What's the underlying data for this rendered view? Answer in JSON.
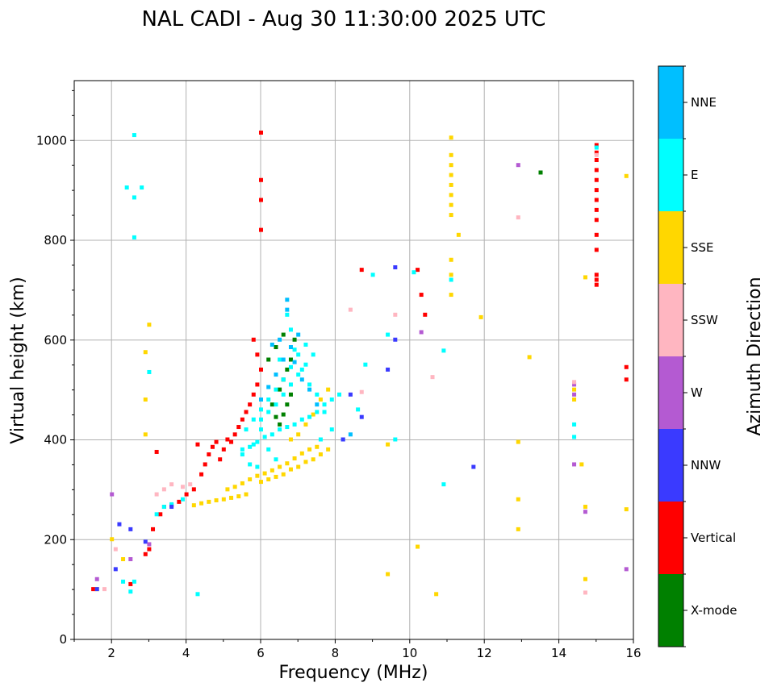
{
  "chart_data": {
    "type": "scatter",
    "title": "NAL CADI - Aug 30 11:30:00 2025 UTC",
    "xlabel": "Frequency (MHz)",
    "ylabel": "Virtual height (km)",
    "xlim": [
      1,
      16
    ],
    "ylim": [
      0,
      1120
    ],
    "xticks": [
      "2",
      "4",
      "6",
      "8",
      "10",
      "12",
      "14",
      "16"
    ],
    "yticks": [
      "0",
      "200",
      "400",
      "600",
      "800",
      "1000"
    ],
    "grid": true,
    "colorbar": {
      "label": "Azimuth Direction",
      "categories": [
        {
          "name": "X-mode",
          "color": "#008000"
        },
        {
          "name": "Vertical",
          "color": "#ff0000"
        },
        {
          "name": "NNW",
          "color": "#3a3aff"
        },
        {
          "name": "W",
          "color": "#b45ad2"
        },
        {
          "name": "SSW",
          "color": "#ffb6c1"
        },
        {
          "name": "SSE",
          "color": "#ffd700"
        },
        {
          "name": "E",
          "color": "#00ffff"
        },
        {
          "name": "NNE",
          "color": "#00bfff"
        }
      ]
    },
    "series": [
      {
        "name": "Vertical",
        "points": [
          [
            1.5,
            100
          ],
          [
            2.5,
            110
          ],
          [
            2.9,
            170
          ],
          [
            3.0,
            180
          ],
          [
            3.1,
            220
          ],
          [
            3.3,
            250
          ],
          [
            3.4,
            265
          ],
          [
            3.6,
            268
          ],
          [
            3.8,
            275
          ],
          [
            4.0,
            290
          ],
          [
            4.2,
            300
          ],
          [
            4.4,
            330
          ],
          [
            4.5,
            350
          ],
          [
            4.6,
            370
          ],
          [
            4.7,
            385
          ],
          [
            4.8,
            395
          ],
          [
            4.9,
            360
          ],
          [
            5.0,
            380
          ],
          [
            5.2,
            395
          ],
          [
            5.3,
            410
          ],
          [
            5.4,
            425
          ],
          [
            5.5,
            440
          ],
          [
            5.6,
            455
          ],
          [
            5.7,
            470
          ],
          [
            5.8,
            490
          ],
          [
            5.9,
            510
          ],
          [
            6.0,
            540
          ],
          [
            5.9,
            570
          ],
          [
            5.8,
            600
          ],
          [
            6.0,
            820
          ],
          [
            6.0,
            880
          ],
          [
            6.0,
            920
          ],
          [
            6.0,
            1015
          ],
          [
            3.2,
            375
          ],
          [
            4.3,
            390
          ],
          [
            5.1,
            400
          ],
          [
            10.3,
            690
          ],
          [
            10.4,
            650
          ],
          [
            10.2,
            740
          ],
          [
            8.7,
            740
          ],
          [
            15.0,
            710
          ],
          [
            15.0,
            720
          ],
          [
            15.0,
            730
          ],
          [
            15.0,
            780
          ],
          [
            15.0,
            810
          ],
          [
            15.0,
            840
          ],
          [
            15.0,
            860
          ],
          [
            15.0,
            880
          ],
          [
            15.0,
            900
          ],
          [
            15.0,
            920
          ],
          [
            15.0,
            940
          ],
          [
            15.0,
            960
          ],
          [
            15.0,
            975
          ],
          [
            15.0,
            990
          ],
          [
            15.8,
            520
          ],
          [
            15.8,
            545
          ]
        ]
      },
      {
        "name": "X-mode",
        "points": [
          [
            6.5,
            430
          ],
          [
            6.6,
            450
          ],
          [
            6.7,
            470
          ],
          [
            6.8,
            490
          ],
          [
            6.5,
            500
          ],
          [
            6.6,
            520
          ],
          [
            6.7,
            540
          ],
          [
            6.8,
            560
          ],
          [
            6.9,
            600
          ],
          [
            6.6,
            610
          ],
          [
            6.4,
            585
          ],
          [
            6.2,
            560
          ],
          [
            6.3,
            470
          ],
          [
            6.4,
            445
          ],
          [
            13.5,
            935
          ]
        ]
      },
      {
        "name": "SSE",
        "points": [
          [
            2.9,
            410
          ],
          [
            2.9,
            480
          ],
          [
            2.9,
            575
          ],
          [
            3.0,
            630
          ],
          [
            1.6,
            100
          ],
          [
            2.0,
            200
          ],
          [
            2.3,
            160
          ],
          [
            4.2,
            268
          ],
          [
            4.4,
            272
          ],
          [
            4.6,
            275
          ],
          [
            4.8,
            278
          ],
          [
            5.0,
            280
          ],
          [
            5.2,
            283
          ],
          [
            5.4,
            286
          ],
          [
            5.6,
            290
          ],
          [
            5.1,
            300
          ],
          [
            5.3,
            305
          ],
          [
            5.5,
            312
          ],
          [
            5.7,
            320
          ],
          [
            5.9,
            327
          ],
          [
            6.1,
            332
          ],
          [
            6.3,
            338
          ],
          [
            6.5,
            345
          ],
          [
            6.7,
            352
          ],
          [
            6.9,
            362
          ],
          [
            7.1,
            372
          ],
          [
            7.3,
            380
          ],
          [
            7.5,
            385
          ],
          [
            6.0,
            315
          ],
          [
            6.2,
            320
          ],
          [
            6.4,
            325
          ],
          [
            6.6,
            330
          ],
          [
            6.8,
            340
          ],
          [
            7.0,
            345
          ],
          [
            7.2,
            355
          ],
          [
            7.4,
            360
          ],
          [
            7.6,
            370
          ],
          [
            7.8,
            380
          ],
          [
            6.8,
            400
          ],
          [
            7.0,
            410
          ],
          [
            7.2,
            430
          ],
          [
            7.4,
            450
          ],
          [
            7.6,
            480
          ],
          [
            7.8,
            500
          ],
          [
            9.4,
            390
          ],
          [
            9.4,
            130
          ],
          [
            10.2,
            185
          ],
          [
            10.7,
            90
          ],
          [
            11.1,
            690
          ],
          [
            11.1,
            730
          ],
          [
            11.1,
            760
          ],
          [
            11.1,
            850
          ],
          [
            11.1,
            870
          ],
          [
            11.1,
            890
          ],
          [
            11.1,
            910
          ],
          [
            11.1,
            930
          ],
          [
            11.1,
            950
          ],
          [
            11.1,
            970
          ],
          [
            11.1,
            1005
          ],
          [
            11.3,
            810
          ],
          [
            11.9,
            645
          ],
          [
            12.9,
            395
          ],
          [
            12.9,
            280
          ],
          [
            12.9,
            220
          ],
          [
            13.2,
            565
          ],
          [
            14.4,
            500
          ],
          [
            14.4,
            480
          ],
          [
            14.6,
            350
          ],
          [
            14.7,
            265
          ],
          [
            14.7,
            120
          ],
          [
            15.8,
            928
          ],
          [
            15.8,
            260
          ],
          [
            14.7,
            725
          ]
        ]
      },
      {
        "name": "E",
        "points": [
          [
            2.3,
            115
          ],
          [
            2.6,
            115
          ],
          [
            2.5,
            95
          ],
          [
            3.2,
            250
          ],
          [
            3.4,
            265
          ],
          [
            3.6,
            270
          ],
          [
            3.9,
            280
          ],
          [
            5.5,
            380
          ],
          [
            5.7,
            385
          ],
          [
            5.9,
            395
          ],
          [
            6.1,
            405
          ],
          [
            6.3,
            410
          ],
          [
            6.5,
            420
          ],
          [
            6.7,
            425
          ],
          [
            6.9,
            430
          ],
          [
            7.1,
            440
          ],
          [
            7.3,
            445
          ],
          [
            7.5,
            455
          ],
          [
            7.7,
            470
          ],
          [
            7.9,
            480
          ],
          [
            8.1,
            490
          ],
          [
            6.0,
            440
          ],
          [
            6.2,
            455
          ],
          [
            6.4,
            470
          ],
          [
            6.6,
            490
          ],
          [
            6.8,
            510
          ],
          [
            7.0,
            530
          ],
          [
            7.2,
            550
          ],
          [
            7.4,
            570
          ],
          [
            5.6,
            420
          ],
          [
            5.8,
            440
          ],
          [
            6.0,
            460
          ],
          [
            6.2,
            480
          ],
          [
            6.4,
            500
          ],
          [
            6.6,
            520
          ],
          [
            6.8,
            545
          ],
          [
            7.0,
            570
          ],
          [
            7.2,
            590
          ],
          [
            6.5,
            560
          ],
          [
            6.8,
            620
          ],
          [
            6.7,
            650
          ],
          [
            6.9,
            580
          ],
          [
            7.1,
            540
          ],
          [
            7.3,
            510
          ],
          [
            7.5,
            490
          ],
          [
            7.7,
            455
          ],
          [
            7.9,
            420
          ],
          [
            7.6,
            400
          ],
          [
            6.0,
            420
          ],
          [
            6.2,
            380
          ],
          [
            6.4,
            360
          ],
          [
            5.8,
            390
          ],
          [
            5.5,
            370
          ],
          [
            5.7,
            350
          ],
          [
            5.9,
            345
          ],
          [
            4.3,
            90
          ],
          [
            2.8,
            905
          ],
          [
            2.4,
            905
          ],
          [
            2.6,
            885
          ],
          [
            2.6,
            805
          ],
          [
            2.6,
            1010
          ],
          [
            3.0,
            535
          ],
          [
            8.6,
            460
          ],
          [
            8.8,
            550
          ],
          [
            9.0,
            730
          ],
          [
            9.4,
            610
          ],
          [
            10.1,
            735
          ],
          [
            10.9,
            310
          ],
          [
            10.9,
            578
          ],
          [
            11.1,
            720
          ],
          [
            14.4,
            430
          ],
          [
            14.4,
            405
          ],
          [
            15.0,
            985
          ],
          [
            9.6,
            400
          ]
        ]
      },
      {
        "name": "NNE",
        "points": [
          [
            6.0,
            480
          ],
          [
            6.2,
            505
          ],
          [
            6.4,
            530
          ],
          [
            6.6,
            560
          ],
          [
            6.8,
            585
          ],
          [
            7.0,
            610
          ],
          [
            6.7,
            680
          ],
          [
            6.7,
            660
          ],
          [
            6.5,
            600
          ],
          [
            6.3,
            590
          ],
          [
            6.9,
            555
          ],
          [
            7.1,
            520
          ],
          [
            7.3,
            500
          ],
          [
            7.5,
            470
          ],
          [
            8.2,
            400
          ],
          [
            8.4,
            410
          ]
        ]
      },
      {
        "name": "NNW",
        "points": [
          [
            1.6,
            100
          ],
          [
            2.1,
            140
          ],
          [
            2.2,
            230
          ],
          [
            2.5,
            220
          ],
          [
            2.9,
            195
          ],
          [
            3.6,
            265
          ],
          [
            8.2,
            400
          ],
          [
            8.4,
            490
          ],
          [
            8.7,
            445
          ],
          [
            9.4,
            540
          ],
          [
            11.7,
            345
          ],
          [
            9.6,
            600
          ],
          [
            9.6,
            745
          ]
        ]
      },
      {
        "name": "W",
        "points": [
          [
            1.6,
            120
          ],
          [
            2.0,
            290
          ],
          [
            2.5,
            160
          ],
          [
            3.0,
            190
          ],
          [
            10.3,
            615
          ],
          [
            12.9,
            950
          ],
          [
            14.4,
            350
          ],
          [
            14.7,
            255
          ],
          [
            15.8,
            140
          ],
          [
            14.4,
            510
          ],
          [
            14.4,
            490
          ]
        ]
      },
      {
        "name": "SSW",
        "points": [
          [
            1.8,
            100
          ],
          [
            2.1,
            180
          ],
          [
            3.2,
            290
          ],
          [
            3.4,
            300
          ],
          [
            3.6,
            310
          ],
          [
            3.9,
            305
          ],
          [
            4.1,
            310
          ],
          [
            8.4,
            660
          ],
          [
            8.7,
            495
          ],
          [
            9.6,
            650
          ],
          [
            10.6,
            525
          ],
          [
            12.9,
            845
          ],
          [
            14.4,
            515
          ],
          [
            14.7,
            93
          ],
          [
            15.0,
            970
          ]
        ]
      }
    ]
  }
}
